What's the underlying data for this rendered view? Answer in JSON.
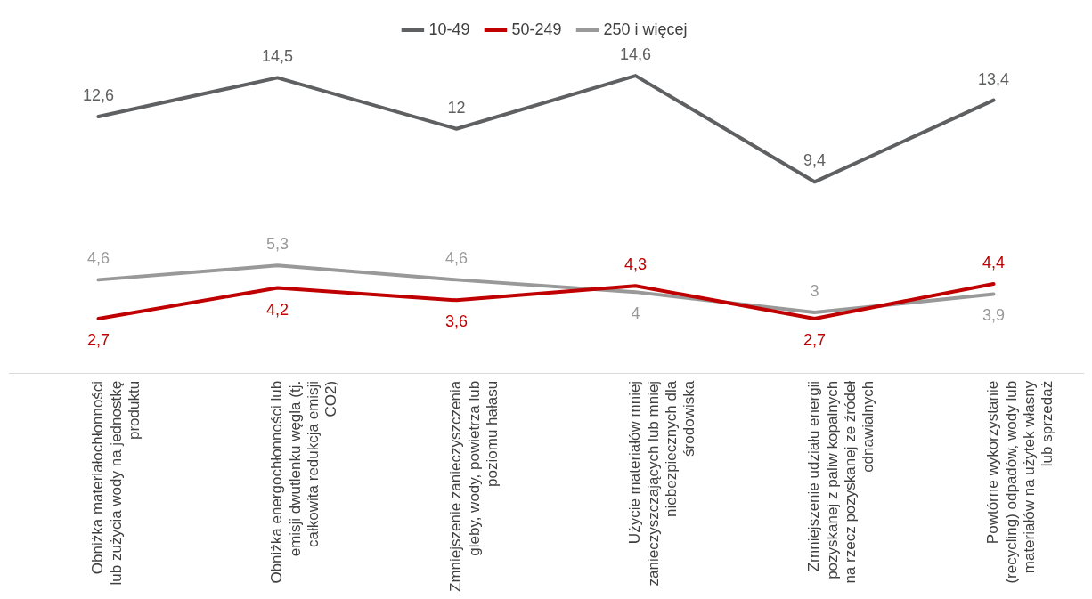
{
  "chart_data": {
    "type": "line",
    "categories": [
      "Obniżka materiałochłonności lub zużycia wody na jednostkę produktu",
      "Obniżka energochłonności lub emisji dwutlenku węgla (tj. całkowita redukcja emisji CO2)",
      "Zmniejszenie zanieczyszczenia gleby, wody, powietrza lub poziomu hałasu",
      "Użycie materiałów mniej zanieczyszczających lub mniej niebezpiecznych dla środowiska",
      "Zmniejszenie udziału energii pozyskanej z paliw kopalnych na rzecz pozyskanej ze źródeł odnawialnych",
      "Powtórne wykorzystanie (recycling) odpadów, wody lub materiałów na użytek własny lub sprzedaż"
    ],
    "series": [
      {
        "name": "10-49",
        "color": "#5f6062",
        "values": [
          12.6,
          14.5,
          12,
          14.6,
          9.4,
          13.4
        ],
        "value_labels": [
          "12,6",
          "14,5",
          "12",
          "14,6",
          "9,4",
          "13,4"
        ]
      },
      {
        "name": "50-249",
        "color": "#c00000",
        "values": [
          2.7,
          4.2,
          3.6,
          4.3,
          2.7,
          4.4
        ],
        "value_labels": [
          "2,7",
          "4,2",
          "3,6",
          "4,3",
          "2,7",
          "4,4"
        ]
      },
      {
        "name": "250 i więcej",
        "color": "#999999",
        "values": [
          4.6,
          5.3,
          4.6,
          4,
          3,
          3.9
        ],
        "value_labels": [
          "4,6",
          "5,3",
          "4,6",
          "4",
          "3",
          "3,9"
        ]
      }
    ],
    "grid": false,
    "legend": "top",
    "tick_labels": "x",
    "line_style": "solid"
  }
}
